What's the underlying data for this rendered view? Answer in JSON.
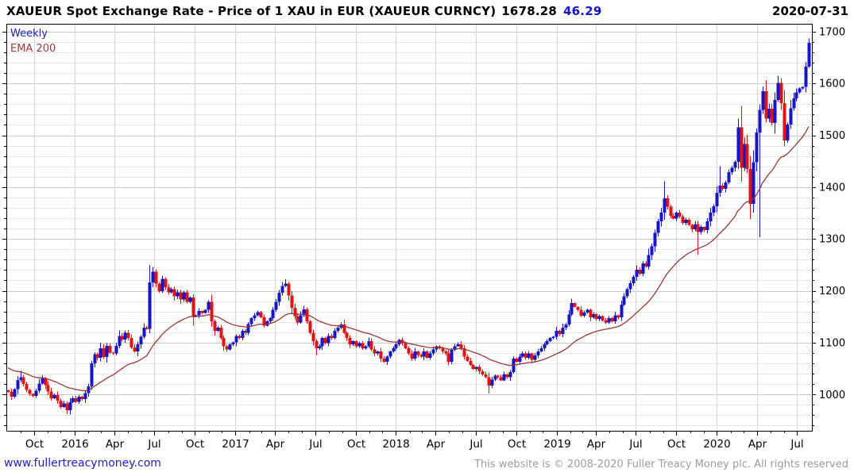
{
  "header": {
    "title": "XAUEUR Spot Exchange Rate - Price of 1 XAU in EUR (XAUEUR CURNCY)",
    "last_price": "1678.28",
    "change": "46.29",
    "date": "2020-07-31"
  },
  "legend": {
    "series": "Weekly",
    "ema": "EMA 200"
  },
  "footer": {
    "website": "www.fullertreacymoney.com",
    "copyright": "This website is © 2008-2020 Fuller Treacy Money plc. All rights reserved"
  },
  "chart_data": {
    "type": "candlestick",
    "title": "XAUEUR Spot Exchange Rate - Price of 1 XAU in EUR (XAUEUR CURNCY)",
    "interval": "weekly",
    "start_week": "2015-08-03",
    "last_price": 1678.28,
    "change": 46.29,
    "xlabel": "",
    "ylabel": "",
    "ylim": [
      930,
      1715
    ],
    "grid": true,
    "legend_position": "top-left",
    "y_ticks": [
      1000,
      1100,
      1200,
      1300,
      1400,
      1500,
      1600,
      1700
    ],
    "y_minor_step": 20,
    "x_ticks": [
      {
        "label": "Oct",
        "week": 8.43
      },
      {
        "label": "2016",
        "week": 21.57
      },
      {
        "label": "Apr",
        "week": 34.57
      },
      {
        "label": "Jul",
        "week": 47.57
      },
      {
        "label": "Oct",
        "week": 60.71
      },
      {
        "label": "2017",
        "week": 73.86
      },
      {
        "label": "Apr",
        "week": 86.71
      },
      {
        "label": "Jul",
        "week": 99.71
      },
      {
        "label": "Oct",
        "week": 112.86
      },
      {
        "label": "2018",
        "week": 126.0
      },
      {
        "label": "Apr",
        "week": 138.86
      },
      {
        "label": "Jul",
        "week": 151.86
      },
      {
        "label": "Oct",
        "week": 165.0
      },
      {
        "label": "2019",
        "week": 178.14
      },
      {
        "label": "Apr",
        "week": 190.86
      },
      {
        "label": "Jul",
        "week": 203.86
      },
      {
        "label": "Oct",
        "week": 217.0
      },
      {
        "label": "2020",
        "week": 230.14
      },
      {
        "label": "Apr",
        "week": 243.14
      },
      {
        "label": "Jul",
        "week": 256.14
      }
    ],
    "open_first": 1008,
    "closes": [
      1005,
      996,
      1010,
      1028,
      1033,
      1020,
      1009,
      1001,
      997,
      1007,
      1021,
      1031,
      1018,
      1006,
      993,
      999,
      988,
      976,
      983,
      970,
      985,
      993,
      986,
      996,
      991,
      1003,
      1016,
      1060,
      1078,
      1071,
      1089,
      1072,
      1094,
      1081,
      1079,
      1094,
      1113,
      1106,
      1119,
      1109,
      1091,
      1083,
      1097,
      1111,
      1129,
      1127,
      1216,
      1237,
      1214,
      1199,
      1223,
      1207,
      1197,
      1203,
      1189,
      1197,
      1183,
      1197,
      1179,
      1187,
      1150,
      1153,
      1161,
      1157,
      1163,
      1179,
      1141,
      1123,
      1129,
      1109,
      1093,
      1087,
      1097,
      1101,
      1113,
      1109,
      1123,
      1119,
      1136,
      1147,
      1153,
      1159,
      1149,
      1133,
      1141,
      1147,
      1163,
      1179,
      1196,
      1209,
      1214,
      1191,
      1167,
      1151,
      1139,
      1153,
      1164,
      1141,
      1119,
      1103,
      1089,
      1093,
      1109,
      1099,
      1113,
      1109,
      1123,
      1129,
      1135,
      1119,
      1109,
      1097,
      1103,
      1093,
      1099,
      1089,
      1093,
      1103,
      1087,
      1079,
      1083,
      1069,
      1063,
      1073,
      1083,
      1089,
      1097,
      1105,
      1099,
      1089,
      1079,
      1069,
      1083,
      1076,
      1073,
      1083,
      1071,
      1079,
      1087,
      1093,
      1089,
      1083,
      1079,
      1063,
      1086,
      1093,
      1097,
      1089,
      1073,
      1065,
      1057,
      1049,
      1053,
      1045,
      1039,
      1033,
      1017,
      1029,
      1036,
      1033,
      1027,
      1039,
      1033,
      1043,
      1069,
      1063,
      1073,
      1079,
      1071,
      1079,
      1067,
      1075,
      1083,
      1089,
      1097,
      1103,
      1109,
      1111,
      1123,
      1117,
      1129,
      1135,
      1154,
      1176,
      1169,
      1163,
      1152,
      1158,
      1163,
      1149,
      1155,
      1146,
      1151,
      1143,
      1139,
      1147,
      1141,
      1153,
      1149,
      1173,
      1189,
      1203,
      1215,
      1227,
      1241,
      1233,
      1253,
      1247,
      1269,
      1286,
      1312,
      1334,
      1351,
      1378,
      1362,
      1345,
      1339,
      1351,
      1343,
      1331,
      1337,
      1327,
      1319,
      1329,
      1313,
      1323,
      1317,
      1334,
      1351,
      1363,
      1389,
      1403,
      1397,
      1409,
      1429,
      1437,
      1449,
      1515,
      1437,
      1483,
      1435,
      1368,
      1448,
      1505,
      1549,
      1585,
      1532,
      1551,
      1524,
      1568,
      1601,
      1562,
      1490,
      1521,
      1552,
      1571,
      1583,
      1590,
      1593,
      1631.99,
      1678.28
    ],
    "wick_overrides": {
      "4": {
        "high": 1046
      },
      "19": {
        "low": 962
      },
      "46": {
        "high": 1250
      },
      "47": {
        "high": 1246
      },
      "90": {
        "high": 1222
      },
      "100": {
        "low": 1076
      },
      "156": {
        "low": 1002
      },
      "183": {
        "high": 1185
      },
      "213": {
        "high": 1411
      },
      "224": {
        "low": 1270
      },
      "231": {
        "high": 1440
      },
      "238": {
        "high": 1557
      },
      "241": {
        "low": 1338
      },
      "244": {
        "low": 1303
      },
      "260": {
        "high": 1687,
        "low": 1630
      }
    },
    "series": [
      {
        "name": "Weekly",
        "type": "candlestick"
      },
      {
        "name": "EMA 200",
        "type": "line"
      }
    ],
    "ema": {
      "label": "EMA 200",
      "seed": 1055,
      "k": 0.065
    },
    "colors": {
      "up": "#1414cc",
      "down": "#e01212",
      "ema": "#9b3737",
      "grid_major": "#c9c9c9",
      "grid_minor": "#e7e7e7",
      "grid_vertical": "#d4d4d4",
      "axis": "#000000",
      "change_text": "#1414cc",
      "link": "#2222cc",
      "copyright_text": "#9c9c9c"
    }
  }
}
